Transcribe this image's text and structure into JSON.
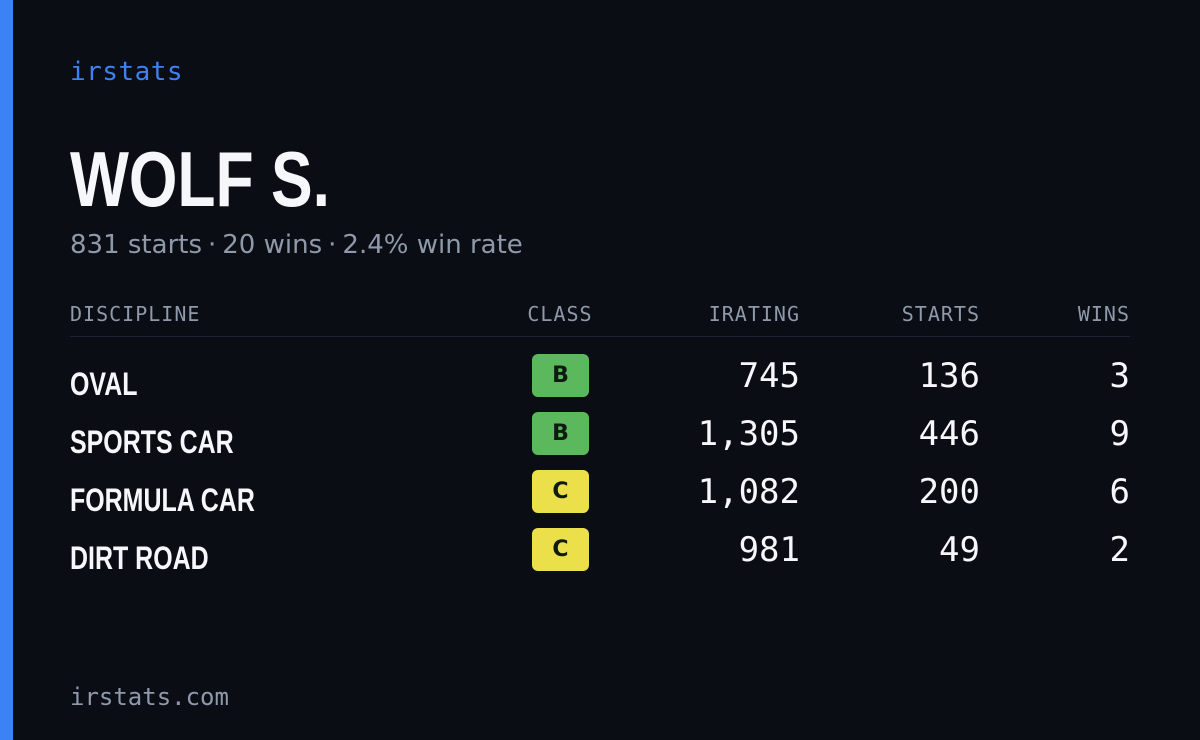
{
  "colors": {
    "accent": "#3b82f6",
    "class_b": "#5cb85c",
    "class_c": "#ebdf4a"
  },
  "brand": "irstats",
  "driver": {
    "name": "WOLF S.",
    "summary": {
      "starts": "831 starts",
      "wins": "20 wins",
      "win_rate": "2.4% win rate",
      "separator": "·"
    }
  },
  "table": {
    "headers": {
      "discipline": "DISCIPLINE",
      "class": "CLASS",
      "irating": "IRATING",
      "starts": "STARTS",
      "wins": "WINS"
    },
    "rows": [
      {
        "discipline": "OVAL",
        "class": "B",
        "irating": "745",
        "starts": "136",
        "wins": "3"
      },
      {
        "discipline": "SPORTS CAR",
        "class": "B",
        "irating": "1,305",
        "starts": "446",
        "wins": "9"
      },
      {
        "discipline": "FORMULA CAR",
        "class": "C",
        "irating": "1,082",
        "starts": "200",
        "wins": "6"
      },
      {
        "discipline": "DIRT ROAD",
        "class": "C",
        "irating": "981",
        "starts": "49",
        "wins": "2"
      }
    ]
  },
  "footer": "irstats.com"
}
